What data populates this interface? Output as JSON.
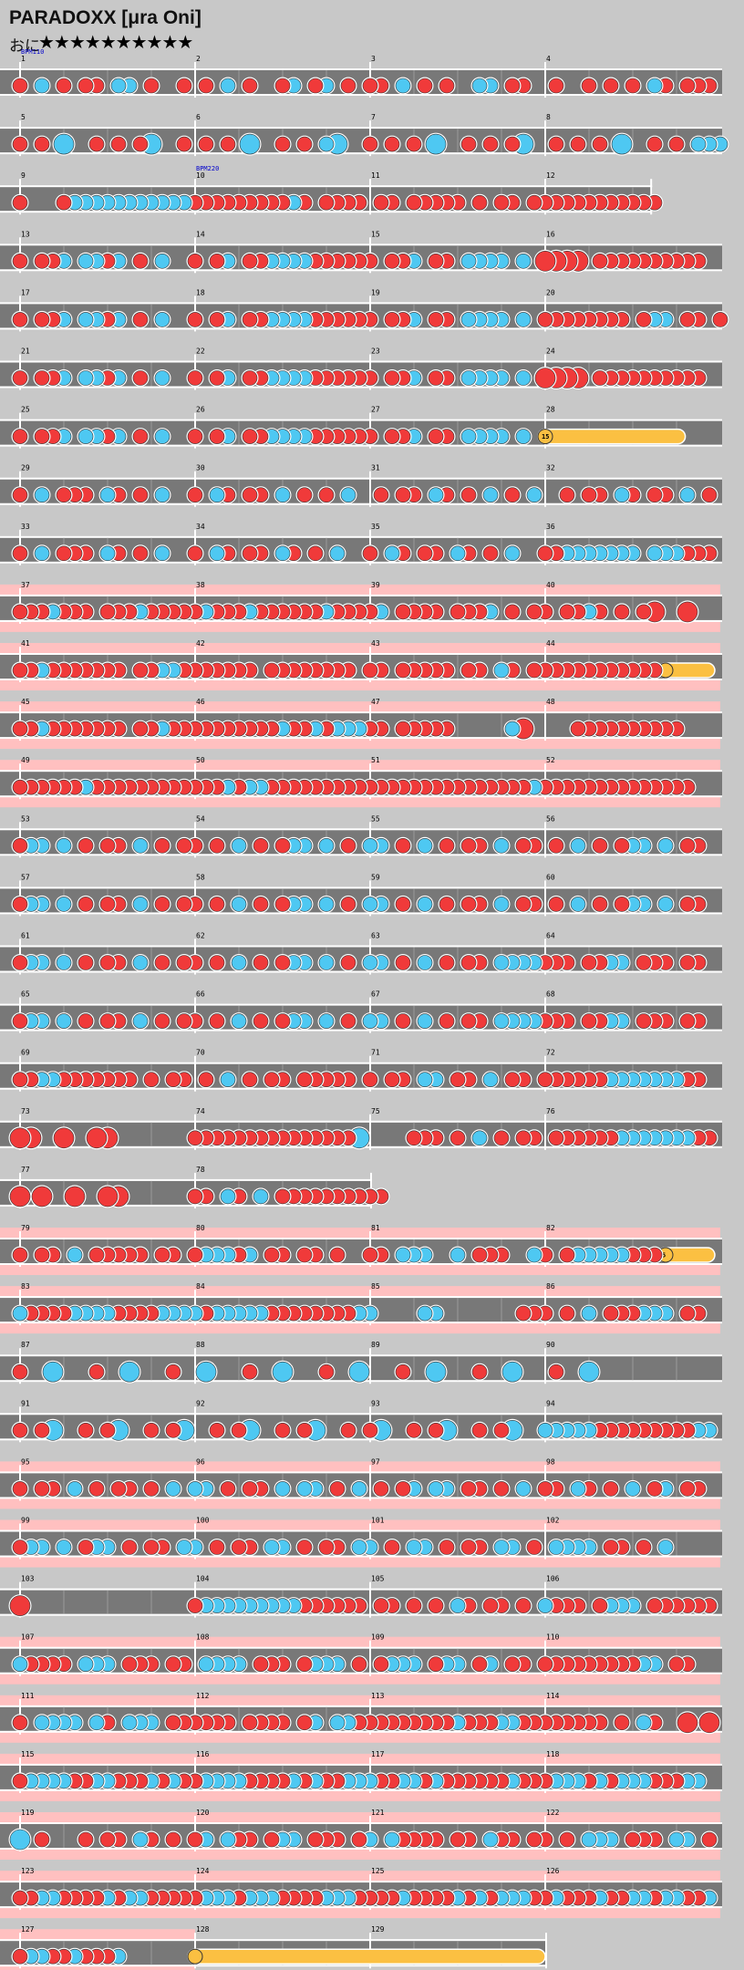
{
  "song": {
    "title": "PARADOXX [μra Oni]",
    "difficulty_label": "おに",
    "stars": "★★★★★★★★★★"
  },
  "colors": {
    "background": "#c8c8c8",
    "gogo": "#ffc0c0",
    "lane": "#787878",
    "don": "#f03a3a",
    "ka": "#4ec8f2",
    "roll": "#fbc042",
    "bpm_text": "#0000cc"
  },
  "bpm_changes": [
    {
      "measure": 1,
      "label": "BPM110"
    },
    {
      "measure": 10,
      "label": "BPM220"
    }
  ],
  "gogo_measures": [
    37,
    38,
    39,
    40,
    41,
    42,
    43,
    44,
    45,
    46,
    47,
    48,
    49,
    50,
    51,
    52,
    79,
    80,
    81,
    82,
    83,
    84,
    85,
    86,
    95,
    96,
    97,
    98,
    99,
    100,
    101,
    102,
    107,
    108,
    109,
    110,
    111,
    112,
    113,
    114,
    115,
    116,
    117,
    118,
    119,
    120,
    121,
    122,
    123,
    124,
    125,
    126,
    127
  ],
  "rolls": [
    {
      "measure": 28,
      "label": "15"
    },
    {
      "measure": 44,
      "label": ""
    },
    {
      "measure": 82,
      "label": "5"
    },
    {
      "measure": 128,
      "label": ""
    }
  ],
  "rows": [
    {
      "measures": [
        1,
        2,
        3,
        4
      ],
      "pattern": "d.k.d.dd.kk.d..d.d.k.d..dk.dk.d.dd.k.d.d..kk.dd..d..d.d.d.kd.ddd"
    },
    {
      "measures": [
        5,
        6,
        7,
        8
      ],
      "pattern": "d.d.K..d.d.dK..d.d.d.K..d.d.kK..d.d.d.K..d.d.dK..d.d.d.K..d.d.kkk"
    },
    {
      "measures": [
        9,
        10,
        11,
        12
      ],
      "pattern": "d...dkkkkkkkkkkkdddddddddkd.dddd.dd.ddddd.d.dd.dddddddddddd"
    },
    {
      "measures": [
        13,
        14,
        15,
        16
      ],
      "pattern": "d.ddk.kkdk.d.k..d.dk.ddkkkkdddddd.ddk.dd.kkkk.k.DDDD.dddddddddd"
    },
    {
      "measures": [
        17,
        18,
        19,
        20
      ],
      "pattern": "d.ddk.kkdk.d.k..d.dk.ddkkkkdddddd.ddk.dd.kkkk.k.dddddddd.dkk.dd.d"
    },
    {
      "measures": [
        21,
        22,
        23,
        24
      ],
      "pattern": "d.ddk.kkdk.d.k..d.dk.ddkkkkdddddd.ddk.dd.kkkk.k.DDDD.dddddddddd"
    },
    {
      "measures": [
        25,
        26,
        27,
        28
      ],
      "pattern": "d.ddk.kkdk.d.k..d.dk.ddkkkkdddddd.ddk.dd.kkkk.k.r"
    },
    {
      "measures": [
        29,
        30,
        31,
        32
      ],
      "pattern": "d.k.ddd.kd.d.k..d.kd.dd.k.d.d.k..d.dd.kd.d.k.d.k..d.dd.kd.dd.k.d"
    },
    {
      "measures": [
        33,
        34,
        35,
        36
      ],
      "pattern": "d.k.ddd.kd.d.k..d.kd.dd.kd.d.k..d.kd.dd.kd.d.k..ddkkkkkkk.kkkddd"
    },
    {
      "measures": [
        37,
        38,
        39,
        40
      ],
      "pattern": "dddkddd.dddkdddddkdddkddddddkddddk.dddd.dddk.d.dd.ddkd.d.dD..D."
    },
    {
      "measures": [
        41,
        42,
        43,
        44
      ],
      "pattern": "ddkddddddd.ddkkddddddd.dddddddd.dd.ddddd.dd.kd.ddddddddddddr"
    },
    {
      "measures": [
        45,
        46,
        47,
        48
      ],
      "pattern": "ddkddddddd.ddkddddddddddkddkdkkkdd.ddddd.....kD....dddddddddd"
    },
    {
      "measures": [
        49,
        50,
        51,
        52
      ],
      "pattern": "ddddddkddddddddddddkdkkddddddddddddddddddddddddkdddddddddddddd"
    },
    {
      "measures": [
        53,
        54,
        55,
        56
      ],
      "pattern": "dkk.k.d.dd.k.d.dd.d.k.d.dkk.k.d.kk.d.k.d.dd.k.dd.d.k.d.dkk.k.dd"
    },
    {
      "measures": [
        57,
        58,
        59,
        60
      ],
      "pattern": "dkk.k.d.dd.k.d.dd.d.k.d.dkk.k.d.kk.d.k.d.dd.k.dd.d.k.d.dkk.k.dd"
    },
    {
      "measures": [
        61,
        62,
        63,
        64
      ],
      "pattern": "dkk.k.d.dd.k.d.dd.d.k.d.dkk.k.d.kk.d.k.d.dd.kkkkddd.ddkk.ddd.dd"
    },
    {
      "measures": [
        65,
        66,
        67,
        68
      ],
      "pattern": "dkk.k.d.dd.k.d.dd.d.k.d.dkk.k.d.kk.d.k.d.dd.kkkkddd.ddkk.ddd.dd"
    },
    {
      "measures": [
        69,
        70,
        71,
        72
      ],
      "pattern": "ddkkddddddd.d.dd.d.k.d.dd.ddddd.d.dd.kk.dd.k.dd.ddddddkkkkkkkdd."
    },
    {
      "measures": [
        73,
        74,
        75,
        76
      ],
      "pattern": "DD..D..DD.......dddddddddddddddK....ddd.d.k.d.dd.ddddddkkkkkkkdd."
    },
    {
      "measures": [
        77,
        78
      ],
      "pattern": "D.D..D..DD......dd.kd.k.dddddddddd"
    },
    {
      "measures": [
        79,
        80,
        81,
        82
      ],
      "pattern": "d.dd.k.ddddd.dd.dkkkdk.dd.dd.d..dd.kkk..k.ddd..kd.dkkkkkdddr"
    },
    {
      "measures": [
        83,
        84,
        85,
        86
      ],
      "pattern": "kddddkkkkddddkkkkdkkkkkddddddddkk....kk.......ddd.d.k.dddkkk.dd"
    },
    {
      "measures": [
        87,
        88,
        89,
        90
      ],
      "pattern": "d..K...d..K...d..K...d..K...d..K...d..K...d..K...d..K..."
    },
    {
      "measures": [
        91,
        92,
        93,
        94
      ],
      "pattern": "d.dK..d.dK..d.dK..d.dK..d.dK..d.dK..d.dK..d.dK..kkkkkdddddddddkk"
    },
    {
      "measures": [
        95,
        96,
        97,
        98
      ],
      "pattern": "d.dd.k.d.dd.d.k.kk.d.dd.k.kk.d.k.d.dk.kk.dd.d.k.dd.kd.d.k.dk.dd"
    },
    {
      "measures": [
        99,
        100,
        101,
        102
      ],
      "pattern": "dkk.k.dkk.d.dd.kk.d.dd.kk.d.dd.kk.d.kk.d.dd.kk.d.kkkk.dd.d.k.."
    },
    {
      "measures": [
        103,
        104,
        105,
        106
      ],
      "pattern": "D...............dkkkkkkkkkdddddd.dd.d.d.kd.dd.d.kddd.dkkk.dddddd"
    },
    {
      "measures": [
        107,
        108,
        109,
        110
      ],
      "pattern": "kdddd.kkk.ddd.dd.kkkk.ddd.dkkk.d.dkkk.dkk.dk.dd.dddddddddkk.dd"
    },
    {
      "measures": [
        111,
        112,
        113,
        114
      ],
      "pattern": "d.kkkk.kd.kkk.dddddd.dddd.dk.kkdddddddddkdddkkdddddddd.d.kd..D.D"
    },
    {
      "measures": [
        115,
        116,
        117,
        118
      ],
      "pattern": "dkkkkddkkdddkdkddkkkkddddkdkddkkkddkkdkddddddkdddkkkdkdkkkdddkk"
    },
    {
      "measures": [
        119,
        120,
        121,
        122
      ],
      "pattern": "K.d...d.dd.kd.d.dk.kdd.dkk.ddd.dk.kdddd.dd.kdd.dd.d.kkk.ddd.kk.d"
    },
    {
      "measures": [
        123,
        124,
        125,
        126
      ],
      "pattern": "ddkkddddkdkkdddddkkkdkkkddddkkkddddkddddkdkdkkkddkdddkddkkdkkddk"
    },
    {
      "measures": [
        127,
        128,
        129
      ],
      "pattern": "dkkddkdddk......r"
    }
  ],
  "partial_rows": {
    "9": 3.6,
    "77": 2.0,
    "127": 3.0
  }
}
